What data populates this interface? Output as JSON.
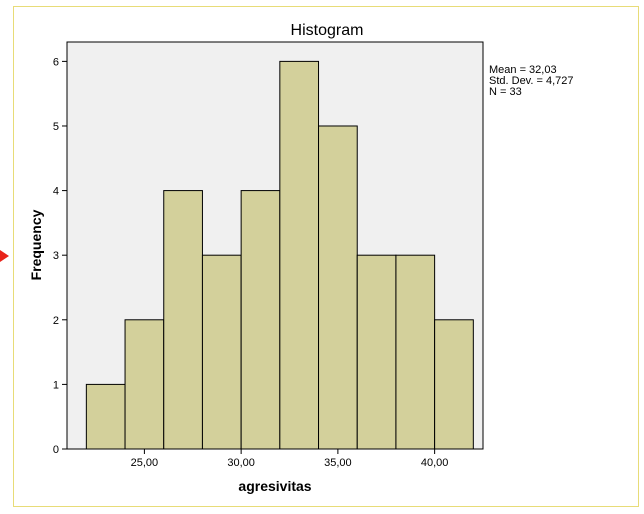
{
  "chart_data": {
    "type": "bar",
    "title": "Histogram",
    "xlabel": "agresivitas",
    "ylabel": "Frequency",
    "bin_edges": [
      22,
      24,
      26,
      28,
      30,
      32,
      34,
      36,
      38,
      40,
      42
    ],
    "values": [
      1,
      2,
      4,
      3,
      4,
      6,
      5,
      3,
      3,
      2
    ],
    "xlim": [
      21,
      42.5
    ],
    "ylim": [
      0,
      6.3
    ],
    "x_ticks": [
      25,
      30,
      35,
      40
    ],
    "x_tick_labels": [
      "25,00",
      "30,00",
      "35,00",
      "40,00"
    ],
    "y_ticks": [
      0,
      1,
      2,
      3,
      4,
      5,
      6
    ],
    "y_tick_labels": [
      "0",
      "1",
      "2",
      "3",
      "4",
      "5",
      "6"
    ],
    "stats": [
      "Mean = 32,03",
      "Std. Dev. = 4,727",
      "N = 33"
    ],
    "grid": false,
    "colors": {
      "bar_fill": "#d3d09b",
      "bar_stroke": "#000000",
      "plot_background": "#f0f0f0",
      "frame_border": "#e8dc78",
      "marker": "#e8231a"
    }
  }
}
